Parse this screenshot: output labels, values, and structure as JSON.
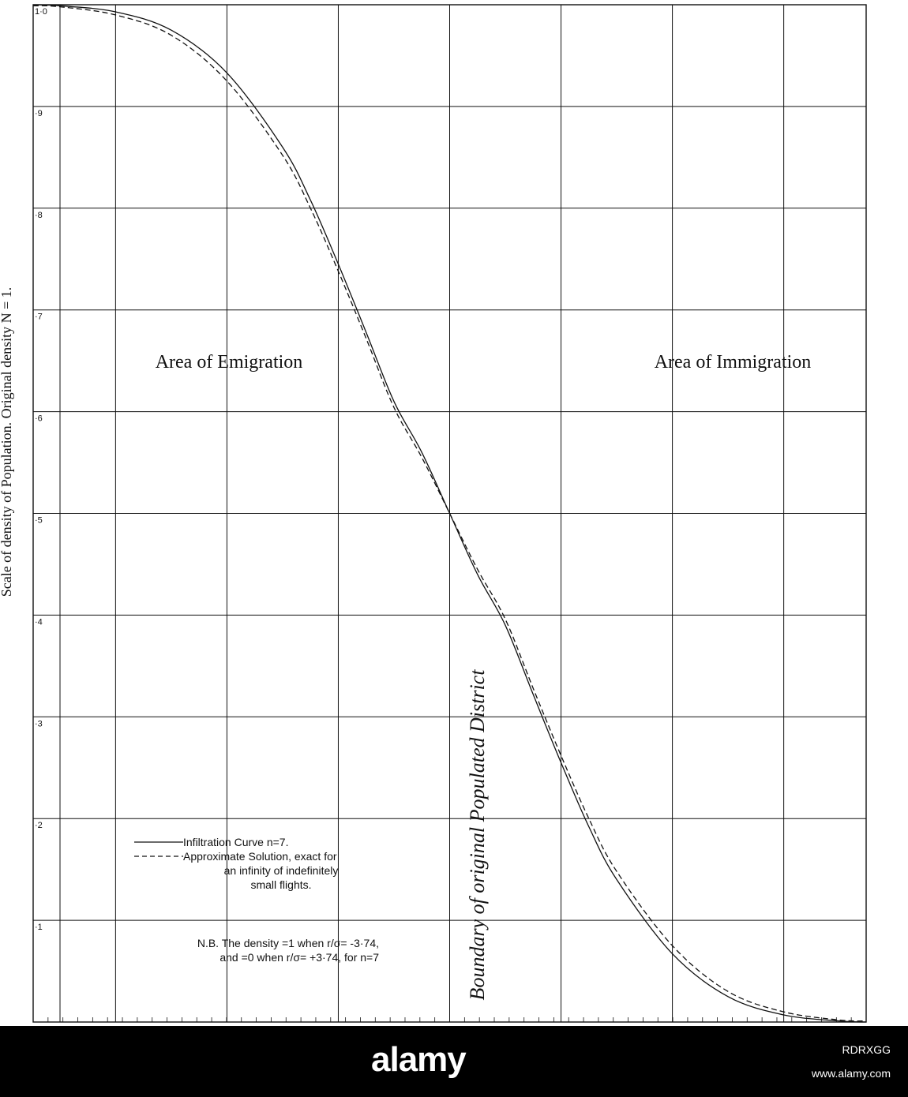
{
  "chart_data": {
    "type": "line",
    "ylabel": "Scale of density of Population. Original density N = 1.",
    "ylim": [
      0,
      1.0
    ],
    "yticks": [
      {
        "value": 1.0,
        "label": "1·0"
      },
      {
        "value": 0.9,
        "label": "·9"
      },
      {
        "value": 0.8,
        "label": "·8"
      },
      {
        "value": 0.7,
        "label": "·7"
      },
      {
        "value": 0.6,
        "label": "·6"
      },
      {
        "value": 0.5,
        "label": "·5"
      },
      {
        "value": 0.4,
        "label": "·4"
      },
      {
        "value": 0.3,
        "label": "·3"
      },
      {
        "value": 0.2,
        "label": "·2"
      },
      {
        "value": 0.1,
        "label": "·1"
      }
    ],
    "xlim": [
      -3.74,
      3.74
    ],
    "grid": true,
    "boundary_x": 0,
    "boundary_label": "Boundary of original Populated District",
    "annotations": {
      "left_area": "Area of Emigration",
      "right_area": "Area of Immigration"
    },
    "legend": {
      "placement": "lower-left",
      "entries": [
        {
          "style": "solid",
          "label_lines": [
            "Infiltration Curve n=7."
          ]
        },
        {
          "style": "dashed",
          "label_lines": [
            "Approximate Solution, exact for",
            "an infinity of indefinitely",
            "small flights."
          ]
        }
      ]
    },
    "note_lines": [
      "N.B. The density =1 when r/σ= -3·74,",
      "and =0 when r/σ= +3·74, for n=7"
    ],
    "series": [
      {
        "style": "solid",
        "x": [
          -3.74,
          -3.5,
          -3.0,
          -2.5,
          -2.0,
          -1.5,
          -1.25,
          -1.0,
          -0.75,
          -0.5,
          -0.25,
          0,
          0.25,
          0.5,
          0.75,
          1.0,
          1.25,
          1.5,
          2.0,
          2.5,
          3.0,
          3.5,
          3.74
        ],
        "y": [
          1.0,
          0.999,
          0.993,
          0.975,
          0.933,
          0.86,
          0.808,
          0.745,
          0.678,
          0.61,
          0.56,
          0.5,
          0.44,
          0.39,
          0.322,
          0.255,
          0.192,
          0.14,
          0.067,
          0.025,
          0.007,
          0.001,
          0.0
        ]
      },
      {
        "style": "dashed",
        "x": [
          -3.74,
          -3.5,
          -3.0,
          -2.5,
          -2.0,
          -1.5,
          -1.25,
          -1.0,
          -0.75,
          -0.5,
          -0.25,
          0,
          0.25,
          0.5,
          0.75,
          1.0,
          1.25,
          1.5,
          2.0,
          2.5,
          3.0,
          3.5,
          3.74
        ],
        "y": [
          0.999,
          0.998,
          0.99,
          0.97,
          0.925,
          0.852,
          0.8,
          0.738,
          0.672,
          0.604,
          0.555,
          0.5,
          0.445,
          0.396,
          0.328,
          0.262,
          0.2,
          0.148,
          0.075,
          0.03,
          0.01,
          0.002,
          0.001
        ]
      }
    ]
  },
  "footer": {
    "logo": "alamy",
    "image_id": "RDRXGG",
    "site": "www.alamy.com"
  }
}
